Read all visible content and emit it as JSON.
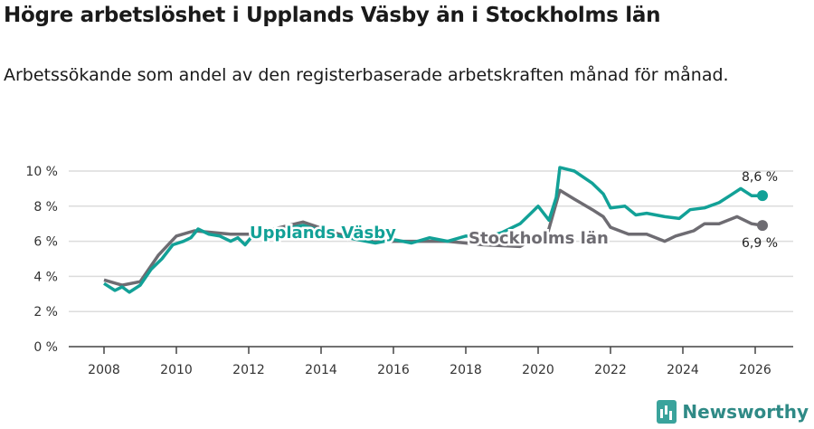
{
  "title": "Högre arbetslöshet i Upplands Väsby än i Stockholms län",
  "subtitle": "Arbetssökande som andel av den registerbaserade arbetskraften månad för månad.",
  "brand": "Newsworthy",
  "chart_data": {
    "type": "line",
    "xlim": [
      2006.9,
      2027.1
    ],
    "ylim": [
      0,
      10
    ],
    "x_ticks": [
      2008,
      2010,
      2012,
      2014,
      2016,
      2018,
      2020,
      2022,
      2024,
      2026
    ],
    "y_ticks": [
      0,
      2,
      4,
      6,
      8,
      10
    ],
    "y_tick_labels": [
      "0 %",
      "2 %",
      "4 %",
      "6 %",
      "8 %",
      "10 %"
    ],
    "grid": true,
    "series": [
      {
        "name": "Stockholms län",
        "color": "#6e6c72",
        "end_label": "6,9 %",
        "x": [
          2008,
          2008.5,
          2009,
          2009.5,
          2010,
          2010.5,
          2011,
          2011.5,
          2012,
          2012.7,
          2013.5,
          2014.5,
          2015.5,
          2016.5,
          2017.5,
          2018.5,
          2019.5,
          2020,
          2020.2,
          2020.6,
          2021,
          2021.5,
          2021.8,
          2022,
          2022.5,
          2023,
          2023.5,
          2023.8,
          2024.3,
          2024.6,
          2025,
          2025.5,
          2025.9,
          2026.2
        ],
        "y": [
          3.8,
          3.5,
          3.7,
          5.2,
          6.3,
          6.6,
          6.5,
          6.4,
          6.4,
          6.7,
          7.1,
          6.4,
          6.0,
          6.0,
          6.0,
          5.8,
          5.7,
          6.3,
          6.0,
          8.9,
          8.4,
          7.8,
          7.4,
          6.8,
          6.4,
          6.4,
          6.0,
          6.3,
          6.6,
          7.0,
          7.0,
          7.4,
          7.0,
          6.9
        ]
      },
      {
        "name": "Upplands Väsby",
        "color": "#12a197",
        "end_label": "8,6 %",
        "x": [
          2008,
          2008.3,
          2008.5,
          2008.7,
          2009,
          2009.3,
          2009.6,
          2009.9,
          2010.2,
          2010.4,
          2010.6,
          2010.9,
          2011.2,
          2011.5,
          2011.7,
          2011.9,
          2012.1,
          2012.7,
          2013.5,
          2014.5,
          2015.5,
          2016,
          2016.5,
          2017,
          2017.5,
          2018,
          2018.5,
          2019,
          2019.5,
          2019.8,
          2020,
          2020.3,
          2020.5,
          2020.6,
          2021,
          2021.5,
          2021.8,
          2022,
          2022.4,
          2022.7,
          2023,
          2023.5,
          2023.9,
          2024.2,
          2024.6,
          2025,
          2025.3,
          2025.6,
          2025.9,
          2026.2
        ],
        "y": [
          3.6,
          3.2,
          3.4,
          3.1,
          3.5,
          4.4,
          5.0,
          5.8,
          6.0,
          6.2,
          6.7,
          6.4,
          6.3,
          6.0,
          6.2,
          5.8,
          6.3,
          6.6,
          6.9,
          6.3,
          5.9,
          6.1,
          5.9,
          6.2,
          6.0,
          6.3,
          6.2,
          6.5,
          7.0,
          7.6,
          8.0,
          7.2,
          8.5,
          10.2,
          10.0,
          9.3,
          8.7,
          7.9,
          8.0,
          7.5,
          7.6,
          7.4,
          7.3,
          7.8,
          7.9,
          8.2,
          8.6,
          9.0,
          8.6,
          8.6
        ]
      }
    ],
    "inline_labels": [
      "Upplands Väsby",
      "Stockholms län"
    ]
  }
}
